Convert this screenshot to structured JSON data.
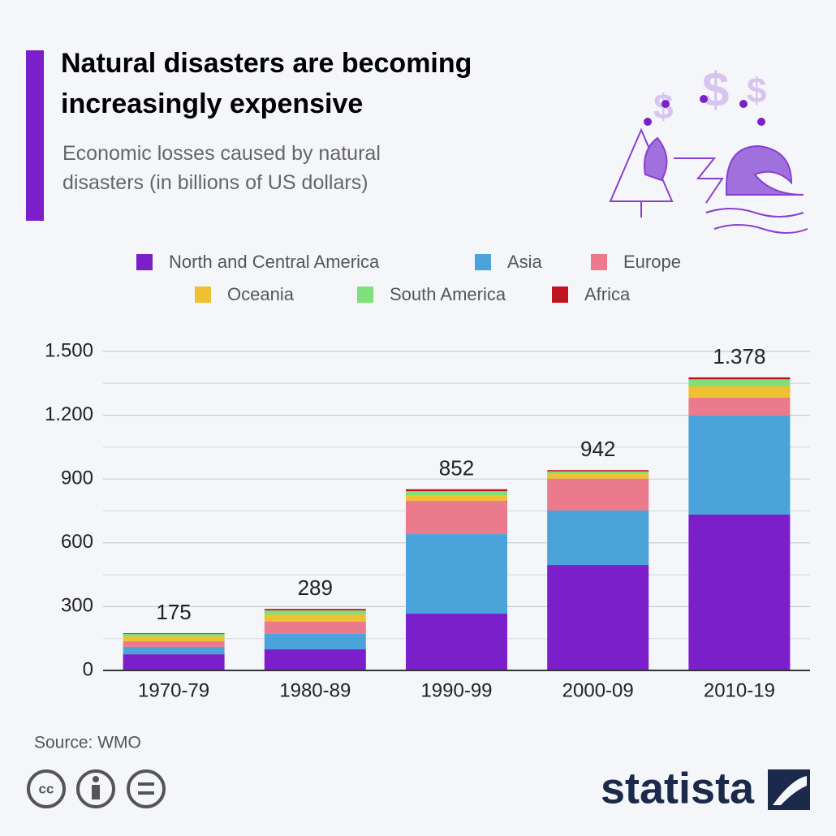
{
  "chart_data": {
    "type": "stacked-bar",
    "title": "Natural disasters are becoming increasingly expensive",
    "subtitle": "Economic losses caused by natural disasters (in billions of US dollars)",
    "categories": [
      "1970-79",
      "1980-89",
      "1990-99",
      "2000-09",
      "2010-19"
    ],
    "series": [
      {
        "name": "North and Central America",
        "color": "#7a1fc9",
        "values": [
          76,
          99,
          267,
          496,
          733
        ]
      },
      {
        "name": "Asia",
        "color": "#4aa3d9",
        "values": [
          35,
          73,
          374,
          256,
          466
        ]
      },
      {
        "name": "Europe",
        "color": "#ea7a8c",
        "values": [
          26,
          57,
          157,
          150,
          84
        ]
      },
      {
        "name": "Oceania",
        "color": "#efc031",
        "values": [
          23,
          34,
          25,
          22,
          53
        ]
      },
      {
        "name": "South America",
        "color": "#7de07a",
        "values": [
          12,
          19,
          20,
          12,
          33
        ]
      },
      {
        "name": "Africa",
        "color": "#c0141c",
        "values": [
          3,
          7,
          9,
          6,
          9
        ]
      }
    ],
    "totals": {
      "values": [
        175,
        289,
        852,
        942,
        1378
      ],
      "value_labels": [
        "175",
        "289",
        "852",
        "942",
        "1.378"
      ]
    },
    "ylim": [
      0,
      1500
    ],
    "yticks": [
      0,
      300,
      600,
      900,
      {
        "value": 1200,
        "label": "1.200"
      },
      {
        "value": 1500,
        "label": "1.500"
      }
    ],
    "minor_yticks": [
      150,
      450,
      750,
      1050,
      1350
    ],
    "grid": true
  },
  "footer": {
    "source": "Source: WMO",
    "brand": "statista"
  }
}
